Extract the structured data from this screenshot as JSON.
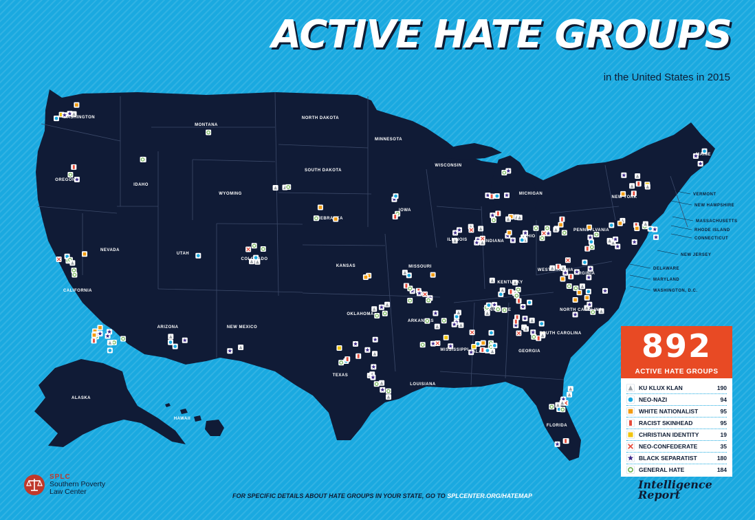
{
  "header": {
    "title": "ACTIVE HATE GROUPS",
    "subtitle": "in the United States in 2015"
  },
  "colors": {
    "background": "#1aa9e0",
    "land": "#101b36",
    "state_border": "#3c4a6a",
    "legend_header": "#e84a24",
    "kkk": "#9aa0a6",
    "neo_nazi": "#1aa9e0",
    "white_nationalist": "#f39c12",
    "racist_skinhead": "#e74c3c",
    "christian_identity": "#f1c40f",
    "neo_confederate": "#e74c3c",
    "black_separatist": "#3f2a8c",
    "general_hate": "#6ab04c"
  },
  "state_labels": [
    "WASHINGTON",
    "OREGON",
    "CALIFORNIA",
    "NEVADA",
    "IDAHO",
    "MONTANA",
    "WYOMING",
    "UTAH",
    "ARIZONA",
    "COLORADO",
    "NEW MEXICO",
    "NORTH DAKOTA",
    "SOUTH DAKOTA",
    "NEBRASKA",
    "KANSAS",
    "OKLAHOMA",
    "TEXAS",
    "MINNESOTA",
    "IOWA",
    "MISSOURI",
    "ARKANSAS",
    "LOUISIANA",
    "WISCONSIN",
    "ILLINOIS",
    "MICHIGAN",
    "INDIANA",
    "OHIO",
    "KENTUCKY",
    "TENNESSEE",
    "MISSISSIPPI",
    "ALABAMA",
    "GEORGIA",
    "FLORIDA",
    "SOUTH CAROLINA",
    "NORTH CAROLINA",
    "VIRGINIA",
    "WEST VIRGINIA",
    "PENNSYLVANIA",
    "NEW YORK",
    "MAINE",
    "ALASKA",
    "HAWAII"
  ],
  "callouts": [
    "VERMONT",
    "NEW HAMPSHIRE",
    "MASSACHUSETTS",
    "RHODE ISLAND",
    "CONNECTICUT",
    "NEW JERSEY",
    "DELAWARE",
    "MARYLAND",
    "WASHINGTON, D.C."
  ],
  "legend": {
    "total": "892",
    "total_label": "ACTIVE HATE GROUPS",
    "items": [
      {
        "label": "KU KLUX KLAN",
        "count": "190",
        "icon": "klan-hood-icon"
      },
      {
        "label": "NEO-NAZI",
        "count": "94",
        "icon": "neo-nazi-icon"
      },
      {
        "label": "WHITE NATIONALIST",
        "count": "95",
        "icon": "white-nationalist-icon"
      },
      {
        "label": "RACIST SKINHEAD",
        "count": "95",
        "icon": "skinhead-icon"
      },
      {
        "label": "CHRISTIAN IDENTITY",
        "count": "19",
        "icon": "christian-identity-icon"
      },
      {
        "label": "NEO-CONFEDERATE",
        "count": "35",
        "icon": "neo-confederate-icon"
      },
      {
        "label": "BLACK SEPARATIST",
        "count": "180",
        "icon": "black-separatist-star-icon"
      },
      {
        "label": "GENERAL HATE",
        "count": "184",
        "icon": "general-hate-icon"
      }
    ]
  },
  "footer": {
    "text": "FOR SPECIFIC DETAILS ABOUT HATE GROUPS IN YOUR STATE, GO TO",
    "link": "SPLCENTER.ORG/HATEMAP"
  },
  "splc": {
    "abbr": "SPLC",
    "name_line1": "Southern Poverty",
    "name_line2": "Law Center"
  },
  "intelligence_report": {
    "line1": "Intelligence",
    "line2": "Report"
  }
}
